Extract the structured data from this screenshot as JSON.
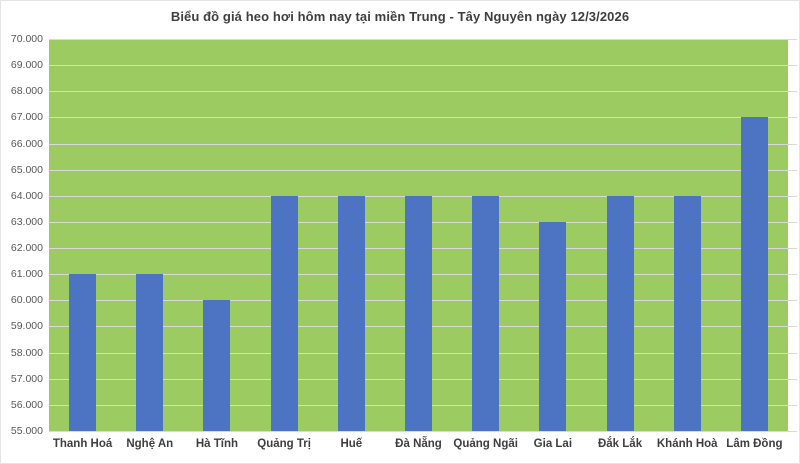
{
  "title": "Biểu đồ giá heo hơi hôm nay tại miền Trung - Tây Nguyên ngày 12/3/2026",
  "colors": {
    "plot_background": "#9ccb62",
    "bar": "#4d74c2",
    "gridline": "#d9d9d9",
    "title_text": "#3f3f3f",
    "ytick_text": "#595959",
    "xtick_text": "#3f3f3f"
  },
  "chart_data": {
    "type": "bar",
    "title": "Biểu đồ giá heo hơi hôm nay tại miền Trung - Tây Nguyên ngày 12/3/2026",
    "categories": [
      "Thanh Hoá",
      "Nghệ An",
      "Hà Tĩnh",
      "Quảng Trị",
      "Huế",
      "Đà Nẵng",
      "Quảng Ngãi",
      "Gia Lai",
      "Đắk Lắk",
      "Khánh Hoà",
      "Lâm Đồng"
    ],
    "values": [
      61000,
      61000,
      60000,
      64000,
      64000,
      64000,
      64000,
      63000,
      64000,
      64000,
      67000
    ],
    "xlabel": "",
    "ylabel": "",
    "ylim": [
      55000,
      70000
    ],
    "ytick_step": 1000,
    "ytick_labels": [
      "55.000",
      "56.000",
      "57.000",
      "58.000",
      "59.000",
      "60.000",
      "61.000",
      "62.000",
      "63.000",
      "64.000",
      "65.000",
      "66.000",
      "67.000",
      "68.000",
      "69.000",
      "70.000"
    ],
    "grid": true,
    "legend_position": "none"
  }
}
